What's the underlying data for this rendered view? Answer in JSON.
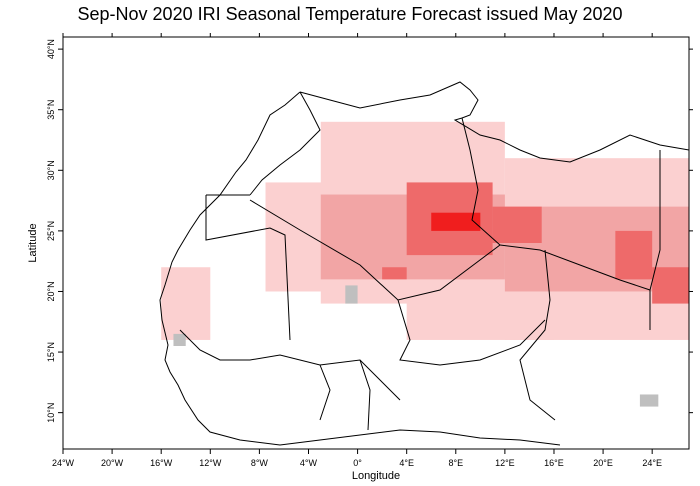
{
  "title": "Sep-Nov 2020 IRI Seasonal Temperature Forecast issued May 2020",
  "axes": {
    "xlabel": "Longitude",
    "ylabel": "Latitude",
    "x_ticks": [
      "24°W",
      "20°W",
      "16°W",
      "12°W",
      "8°W",
      "4°W",
      "0°",
      "4°E",
      "8°E",
      "12°E",
      "16°E",
      "20°E",
      "24°E"
    ],
    "y_ticks": [
      "10°N",
      "15°N",
      "20°N",
      "25°N",
      "30°N",
      "35°N",
      "40°N"
    ]
  },
  "chart_data": {
    "type": "heatmap",
    "title": "Sep-Nov 2020 IRI Seasonal Temperature Forecast issued May 2020",
    "xlabel": "Longitude",
    "ylabel": "Latitude",
    "xlim": [
      -24,
      27
    ],
    "ylim": [
      7,
      41
    ],
    "x_ticks": [
      -24,
      -20,
      -16,
      -12,
      -8,
      -4,
      0,
      4,
      8,
      12,
      16,
      20,
      24
    ],
    "y_ticks": [
      10,
      15,
      20,
      25,
      30,
      35,
      40
    ],
    "categories_colors": {
      "above_weak": "#fbd0d0",
      "above_moderate": "#f2a5a5",
      "above_strong": "#ee6a6a",
      "above_very_strong": "#f01e1e",
      "dry_mask": "#bfbfbf"
    },
    "regions": [
      {
        "level": "above_weak",
        "lon": [
          -3,
          12
        ],
        "lat": [
          19,
          34
        ]
      },
      {
        "level": "above_weak",
        "lon": [
          12,
          27
        ],
        "lat": [
          16,
          31
        ]
      },
      {
        "level": "above_weak",
        "lon": [
          -7.5,
          4
        ],
        "lat": [
          20,
          29
        ]
      },
      {
        "level": "above_weak",
        "lon": [
          -16,
          -12
        ],
        "lat": [
          16,
          22
        ]
      },
      {
        "level": "above_weak",
        "lon": [
          4,
          16
        ],
        "lat": [
          16,
          21
        ]
      },
      {
        "level": "above_moderate",
        "lon": [
          -3,
          12
        ],
        "lat": [
          21,
          28
        ]
      },
      {
        "level": "above_moderate",
        "lon": [
          12,
          27
        ],
        "lat": [
          20,
          27
        ]
      },
      {
        "level": "above_strong",
        "lon": [
          4,
          11
        ],
        "lat": [
          23,
          29
        ]
      },
      {
        "level": "above_strong",
        "lon": [
          11,
          15
        ],
        "lat": [
          24,
          27
        ]
      },
      {
        "level": "above_strong",
        "lon": [
          21,
          24
        ],
        "lat": [
          21,
          25
        ]
      },
      {
        "level": "above_strong",
        "lon": [
          24,
          27
        ],
        "lat": [
          19,
          22
        ]
      },
      {
        "level": "above_strong",
        "lon": [
          2,
          4
        ],
        "lat": [
          21,
          22
        ]
      },
      {
        "level": "above_very_strong",
        "lon": [
          6,
          10
        ],
        "lat": [
          25,
          26.5
        ]
      },
      {
        "level": "dry_mask",
        "lon": [
          -15,
          -14
        ],
        "lat": [
          15.5,
          16.5
        ]
      },
      {
        "level": "dry_mask",
        "lon": [
          -1,
          0
        ],
        "lat": [
          19,
          20.5
        ]
      },
      {
        "level": "dry_mask",
        "lon": [
          23,
          24.5
        ],
        "lat": [
          10.5,
          11.5
        ]
      }
    ]
  }
}
